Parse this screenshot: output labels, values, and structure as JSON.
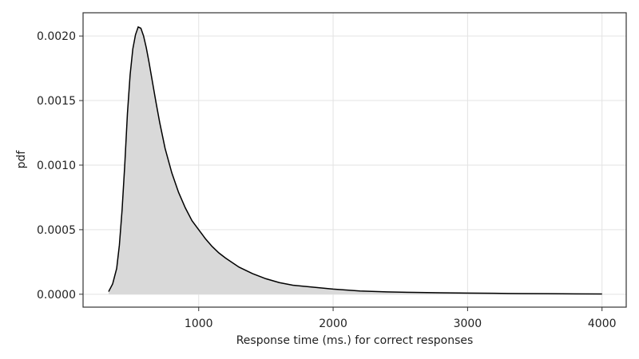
{
  "chart_data": {
    "type": "area",
    "title": "",
    "xlabel": "Response time (ms.) for correct responses",
    "ylabel": "pdf",
    "xlim": [
      140,
      4180
    ],
    "ylim": [
      -0.0001,
      0.00218
    ],
    "grid": true,
    "legend": "none",
    "x_ticks": [
      {
        "value": 1000,
        "label": "1000"
      },
      {
        "value": 2000,
        "label": "2000"
      },
      {
        "value": 3000,
        "label": "3000"
      },
      {
        "value": 4000,
        "label": "4000"
      }
    ],
    "y_ticks": [
      {
        "value": 0.0,
        "label": "0.0000"
      },
      {
        "value": 0.0005,
        "label": "0.0005"
      },
      {
        "value": 0.001,
        "label": "0.0010"
      },
      {
        "value": 0.0015,
        "label": "0.0015"
      },
      {
        "value": 0.002,
        "label": "0.0020"
      }
    ],
    "colors": {
      "fill": "#d9d9d9",
      "line": "#000000"
    },
    "series": [
      {
        "x": [
          330,
          360,
          390,
          410,
          430,
          450,
          470,
          490,
          510,
          530,
          550,
          570,
          590,
          610,
          630,
          650,
          680,
          710,
          750,
          800,
          850,
          900,
          950,
          1000,
          1050,
          1100,
          1150,
          1200,
          1300,
          1400,
          1500,
          1600,
          1700,
          1800,
          1900,
          2000,
          2200,
          2400,
          2600,
          2800,
          3000,
          3200,
          3400,
          3600,
          3800,
          4000
        ],
        "y": [
          2e-05,
          8e-05,
          0.0002,
          0.00038,
          0.00065,
          0.001,
          0.0014,
          0.0017,
          0.0019,
          0.00201,
          0.00207,
          0.00206,
          0.002,
          0.00191,
          0.0018,
          0.00168,
          0.0015,
          0.00133,
          0.00113,
          0.00094,
          0.00079,
          0.00067,
          0.00057,
          0.0005,
          0.00043,
          0.00037,
          0.00032,
          0.00028,
          0.00021,
          0.00016,
          0.00012,
          9e-05,
          7e-05,
          6e-05,
          5e-05,
          4e-05,
          2.5e-05,
          1.8e-05,
          1.4e-05,
          1.1e-05,
          9e-06,
          7e-06,
          5e-06,
          4e-06,
          3e-06,
          2e-06
        ]
      }
    ]
  }
}
